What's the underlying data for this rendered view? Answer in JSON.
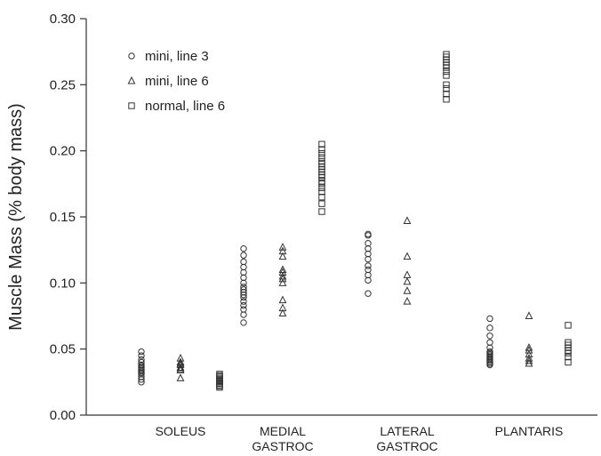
{
  "chart_data": {
    "type": "scatter",
    "title": "",
    "xlabel": "",
    "ylabel": "Muscle Mass (% body mass)",
    "ylim": [
      0,
      0.3
    ],
    "yticks": [
      "0.00",
      "0.05",
      "0.10",
      "0.15",
      "0.20",
      "0.25",
      "0.30"
    ],
    "grid": false,
    "legend_position": "top-left",
    "categories": [
      [
        "SOLEUS"
      ],
      [
        "MEDIAL",
        "GASTROC"
      ],
      [
        "LATERAL",
        "GASTROC"
      ],
      [
        "PLANTARIS"
      ]
    ],
    "series": [
      {
        "name": "mini, line 3",
        "marker": "circle",
        "values": [
          [
            0.025,
            0.027,
            0.029,
            0.031,
            0.032,
            0.033,
            0.034,
            0.035,
            0.036,
            0.037,
            0.038,
            0.04,
            0.042,
            0.045,
            0.048
          ],
          [
            0.07,
            0.076,
            0.08,
            0.083,
            0.086,
            0.089,
            0.091,
            0.093,
            0.095,
            0.097,
            0.1,
            0.104,
            0.108,
            0.112,
            0.116,
            0.121,
            0.126
          ],
          [
            0.092,
            0.102,
            0.106,
            0.11,
            0.113,
            0.118,
            0.122,
            0.126,
            0.13,
            0.136,
            0.137
          ],
          [
            0.038,
            0.039,
            0.04,
            0.041,
            0.042,
            0.043,
            0.044,
            0.045,
            0.046,
            0.047,
            0.048,
            0.051,
            0.055,
            0.06,
            0.066,
            0.073
          ]
        ]
      },
      {
        "name": "mini, line 6",
        "marker": "triangle",
        "values": [
          [
            0.028,
            0.034,
            0.035,
            0.036,
            0.038,
            0.039,
            0.04,
            0.043
          ],
          [
            0.077,
            0.081,
            0.087,
            0.1,
            0.103,
            0.105,
            0.108,
            0.11,
            0.12,
            0.124,
            0.127
          ],
          [
            0.086,
            0.094,
            0.101,
            0.106,
            0.12,
            0.147
          ],
          [
            0.039,
            0.041,
            0.043,
            0.046,
            0.049,
            0.051,
            0.075
          ]
        ]
      },
      {
        "name": "normal, line 6",
        "marker": "square",
        "values": [
          [
            0.021,
            0.022,
            0.023,
            0.024,
            0.025,
            0.026,
            0.027,
            0.028,
            0.029,
            0.03,
            0.031
          ],
          [
            0.154,
            0.16,
            0.165,
            0.169,
            0.172,
            0.175,
            0.177,
            0.18,
            0.182,
            0.184,
            0.186,
            0.188,
            0.19,
            0.192,
            0.195,
            0.198,
            0.201,
            0.205
          ],
          [
            0.239,
            0.243,
            0.247,
            0.25,
            0.257,
            0.26,
            0.263,
            0.265,
            0.267,
            0.269,
            0.271,
            0.273
          ],
          [
            0.04,
            0.044,
            0.047,
            0.049,
            0.051,
            0.053,
            0.055,
            0.068
          ]
        ]
      }
    ]
  }
}
